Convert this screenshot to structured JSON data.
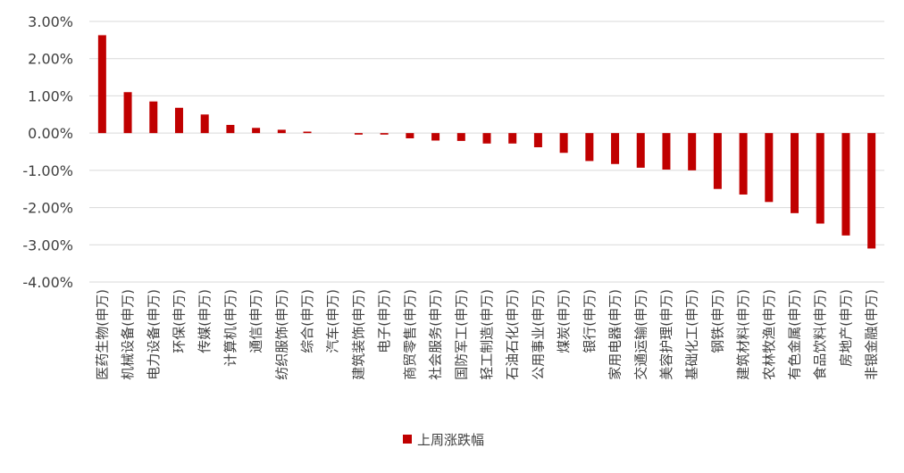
{
  "chart_data": {
    "type": "bar",
    "title": "",
    "xlabel": "",
    "ylabel": "",
    "ylim": [
      -4.0,
      3.0
    ],
    "yticks": [
      3.0,
      2.0,
      1.0,
      0.0,
      -1.0,
      -2.0,
      -3.0,
      -4.0
    ],
    "ytick_labels": [
      "3.00%",
      "2.00%",
      "1.00%",
      "0.00%",
      "-1.00%",
      "-2.00%",
      "-3.00%",
      "-4.00%"
    ],
    "grid": true,
    "legend_position": "bottom",
    "bar_color": "#C00000",
    "categories": [
      "医药生物(申万)",
      "机械设备(申万)",
      "电力设备(申万)",
      "环保(申万)",
      "传媒(申万)",
      "计算机(申万)",
      "通信(申万)",
      "纺织服饰(申万)",
      "综合(申万)",
      "汽车(申万)",
      "建筑装饰(申万)",
      "电子(申万)",
      "商贸零售(申万)",
      "社会服务(申万)",
      "国防军工(申万)",
      "轻工制造(申万)",
      "石油石化(申万)",
      "公用事业(申万)",
      "煤炭(申万)",
      "银行(申万)",
      "家用电器(申万)",
      "交通运输(申万)",
      "美容护理(申万)",
      "基础化工(申万)",
      "钢铁(申万)",
      "建筑材料(申万)",
      "农林牧渔(申万)",
      "有色金属(申万)",
      "食品饮料(申万)",
      "房地产(申万)",
      "非银金融(申万)"
    ],
    "series": [
      {
        "name": "上周涨跌幅",
        "values": [
          2.63,
          1.1,
          0.85,
          0.68,
          0.5,
          0.22,
          0.14,
          0.09,
          0.04,
          0.0,
          -0.04,
          -0.04,
          -0.14,
          -0.2,
          -0.21,
          -0.28,
          -0.28,
          -0.38,
          -0.53,
          -0.75,
          -0.83,
          -0.93,
          -0.98,
          -1.0,
          -1.5,
          -1.65,
          -1.85,
          -2.15,
          -2.43,
          -2.75,
          -3.1
        ]
      }
    ]
  }
}
